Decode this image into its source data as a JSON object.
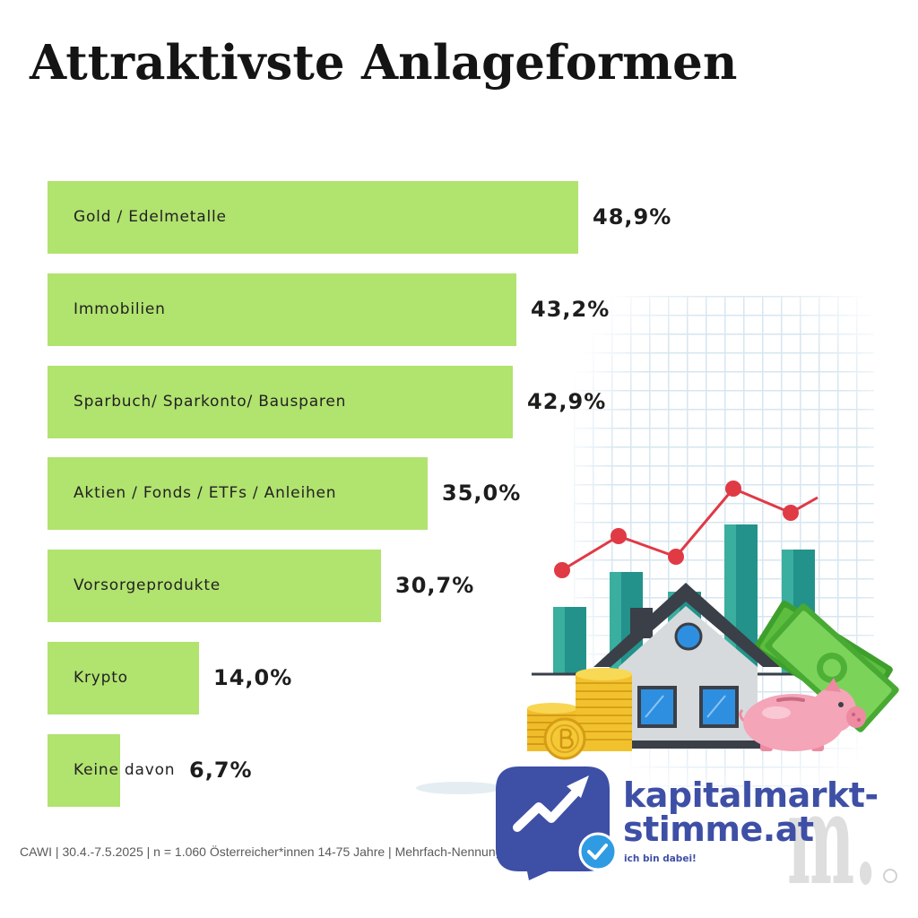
{
  "chart_data": {
    "type": "bar",
    "orientation": "horizontal",
    "title": "Attraktivste Anlageformen",
    "categories": [
      "Gold / Edelmetalle",
      "Immobilien",
      "Sparbuch/ Sparkonto/ Bausparen",
      "Aktien / Fonds / ETFs / Anleihen",
      "Vorsorgeprodukte",
      "Krypto",
      "Keine davon"
    ],
    "values": [
      48.9,
      43.2,
      42.9,
      35.0,
      30.7,
      14.0,
      6.7
    ],
    "value_labels": [
      "48,9%",
      "43,2%",
      "42,9%",
      "35,0%",
      "30,7%",
      "14,0%",
      "6,7%"
    ],
    "grid": false
  },
  "footer": {
    "source": "CAWI | 30.4.-7.5.2025 | n = 1.060 Österreicher*innen 14-75 Jahre | Mehrfach-Nennung"
  },
  "logo": {
    "line1": "kapitalmarkt-",
    "line2": "stimme.at",
    "tagline": "ich bin dabei!"
  },
  "watermark": {
    "text": "m."
  },
  "icons": [
    "grid-background",
    "bar-chart-icon",
    "trend-line-icon",
    "house-icon",
    "coin-stack-icon",
    "money-bills-icon",
    "piggy-bank-icon",
    "speech-bubble-icon",
    "trend-arrow-icon",
    "verified-check-icon"
  ],
  "colors": {
    "bar": "#b1e36f",
    "ink": "#1d1d1b",
    "brand": "#3e4fa6",
    "check": "#2f9be3",
    "trend": "#e03a45",
    "teal": "#23928a",
    "window": "#2e8fe0"
  }
}
